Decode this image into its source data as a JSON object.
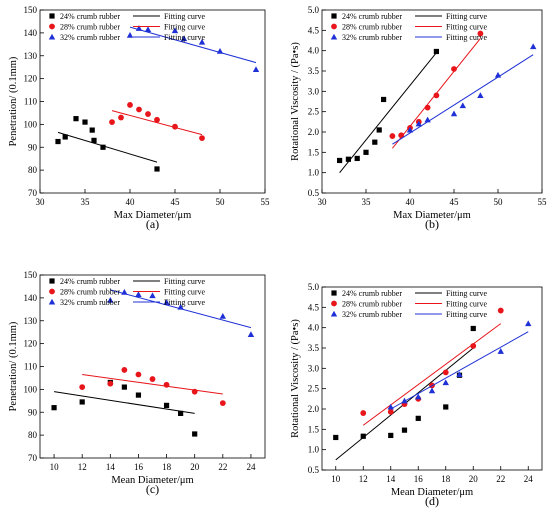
{
  "chart_data": [
    {
      "type": "scatter",
      "panel_label": "(a)",
      "xlabel": "Max Diameter/μm",
      "ylabel": "Penetration/ (0.1mm)",
      "xlim": [
        30,
        55
      ],
      "ylim": [
        70,
        150
      ],
      "xticks": [
        "30",
        "35",
        "40",
        "45",
        "50",
        "55"
      ],
      "yticks": [
        "70",
        "80",
        "90",
        "100",
        "110",
        "120",
        "130",
        "140",
        "150"
      ],
      "legend_position": "top-left",
      "series": [
        {
          "name": "24% crumb rubber",
          "color": "#000000",
          "marker": "square",
          "x": [
            32,
            32.8,
            34,
            35,
            35.8,
            36,
            37,
            43
          ],
          "y": [
            92.5,
            94.5,
            102.5,
            101,
            97.5,
            93,
            90,
            80.5
          ],
          "fit_name": "Fitting curve",
          "fit": [
            [
              32,
              96.5
            ],
            [
              43,
              83.5
            ]
          ]
        },
        {
          "name": "28% crumb rubber",
          "color": "#e8151b",
          "marker": "circle",
          "x": [
            38,
            39,
            40,
            41,
            42,
            43,
            45,
            48
          ],
          "y": [
            101,
            103,
            108.5,
            106.5,
            104.5,
            102,
            99,
            94
          ],
          "fit_name": "Fitting curve",
          "fit": [
            [
              38,
              106
            ],
            [
              48,
              95.5
            ]
          ]
        },
        {
          "name": "32% crumb rubber",
          "color": "#1f31d6",
          "marker": "triangle",
          "x": [
            40,
            41,
            42,
            45,
            46,
            48,
            50,
            54
          ],
          "y": [
            139,
            142,
            141.5,
            141,
            137.5,
            136,
            132,
            124
          ],
          "fit_name": "Fitting curve",
          "fit": [
            [
              40,
              142.5
            ],
            [
              54,
              127
            ]
          ]
        }
      ]
    },
    {
      "type": "scatter",
      "panel_label": "(b)",
      "xlabel": "Max Diameter/μm",
      "ylabel": "Rotational Viscosity / (Pa•s)",
      "xlim": [
        30,
        55
      ],
      "ylim": [
        0.5,
        5.0
      ],
      "xticks": [
        "30",
        "35",
        "40",
        "45",
        "50",
        "55"
      ],
      "yticks": [
        "0.5",
        "1.0",
        "1.5",
        "2.0",
        "2.5",
        "3.0",
        "3.5",
        "4.0",
        "4.5",
        "5.0"
      ],
      "legend_position": "top-left",
      "series": [
        {
          "name": "24% crumb rubber",
          "color": "#000000",
          "marker": "square",
          "x": [
            32,
            33,
            34,
            35,
            36,
            36.5,
            37,
            43
          ],
          "y": [
            1.3,
            1.33,
            1.35,
            1.5,
            1.75,
            2.05,
            2.8,
            3.98
          ],
          "fit_name": "Fitting curve",
          "fit": [
            [
              32,
              1.0
            ],
            [
              43,
              3.95
            ]
          ]
        },
        {
          "name": "28% crumb rubber",
          "color": "#e8151b",
          "marker": "circle",
          "x": [
            38,
            39,
            40,
            41,
            42,
            43,
            45,
            48
          ],
          "y": [
            1.9,
            1.92,
            2.1,
            2.25,
            2.6,
            2.9,
            3.55,
            4.42
          ],
          "fit_name": "Fitting curve",
          "fit": [
            [
              38,
              1.6
            ],
            [
              48,
              4.3
            ]
          ]
        },
        {
          "name": "32% crumb rubber",
          "color": "#1f31d6",
          "marker": "triangle",
          "x": [
            40,
            41,
            42,
            45,
            46,
            48,
            50,
            54
          ],
          "y": [
            2.05,
            2.2,
            2.3,
            2.45,
            2.65,
            2.9,
            3.4,
            4.1
          ],
          "fit_name": "Fitting curve",
          "fit": [
            [
              38,
              1.7
            ],
            [
              54,
              3.9
            ]
          ]
        }
      ]
    },
    {
      "type": "scatter",
      "panel_label": "(c)",
      "xlabel": "Mean Diameter/μm",
      "ylabel": "Penetration/ (0.1mm)",
      "xlim": [
        9,
        25
      ],
      "ylim": [
        70,
        150
      ],
      "xticks": [
        "10",
        "12",
        "14",
        "16",
        "18",
        "20",
        "22",
        "24"
      ],
      "yticks": [
        "70",
        "80",
        "90",
        "100",
        "110",
        "120",
        "130",
        "140",
        "150"
      ],
      "legend_position": "top-left",
      "series": [
        {
          "name": "24% crumb rubber",
          "color": "#000000",
          "marker": "square",
          "x": [
            10,
            12,
            14,
            15,
            16,
            18,
            19,
            20
          ],
          "y": [
            92,
            94.5,
            103,
            101,
            97.5,
            93,
            89.5,
            80.5
          ],
          "fit_name": "Fitting curve",
          "fit": [
            [
              10,
              99
            ],
            [
              20,
              89.5
            ]
          ]
        },
        {
          "name": "28% crumb rubber",
          "color": "#e8151b",
          "marker": "circle",
          "x": [
            12,
            14,
            15,
            16,
            17,
            18,
            20,
            22
          ],
          "y": [
            101,
            102.5,
            108.5,
            106.5,
            104.5,
            102,
            99,
            94
          ],
          "fit_name": "Fitting curve",
          "fit": [
            [
              12,
              106.5
            ],
            [
              22,
              98
            ]
          ]
        },
        {
          "name": "32% crumb rubber",
          "color": "#1f31d6",
          "marker": "triangle",
          "x": [
            14,
            15,
            16,
            17,
            18,
            19,
            22,
            24
          ],
          "y": [
            139,
            142.5,
            141.5,
            141,
            138,
            136,
            132,
            124
          ],
          "fit_name": "Fitting curve",
          "fit": [
            [
              14,
              143.5
            ],
            [
              24,
              127
            ]
          ]
        }
      ]
    },
    {
      "type": "scatter",
      "panel_label": "(d)",
      "xlabel": "Mean Diameter/μm",
      "ylabel": "Rotational Viscosity / (Pa•s)",
      "xlim": [
        9,
        25
      ],
      "ylim": [
        0.5,
        5.0
      ],
      "xticks": [
        "10",
        "12",
        "14",
        "16",
        "18",
        "20",
        "22",
        "24"
      ],
      "yticks": [
        "0.5",
        "1.0",
        "1.5",
        "2.0",
        "2.5",
        "3.0",
        "3.5",
        "4.0",
        "4.5",
        "5.0"
      ],
      "legend_position": "top-left",
      "series": [
        {
          "name": "24% crumb rubber",
          "color": "#000000",
          "marker": "square",
          "x": [
            10,
            12,
            14,
            15,
            16,
            18,
            19,
            20
          ],
          "y": [
            1.3,
            1.33,
            1.35,
            1.48,
            1.77,
            2.05,
            2.83,
            3.98
          ],
          "fit_name": "Fitting curve",
          "fit": [
            [
              10,
              0.75
            ],
            [
              20,
              3.5
            ]
          ]
        },
        {
          "name": "28% crumb rubber",
          "color": "#e8151b",
          "marker": "circle",
          "x": [
            12,
            14,
            15,
            16,
            17,
            18,
            20,
            22
          ],
          "y": [
            1.9,
            1.93,
            2.12,
            2.25,
            2.58,
            2.9,
            3.55,
            4.42
          ],
          "fit_name": "Fitting curve",
          "fit": [
            [
              12,
              1.6
            ],
            [
              22,
              4.1
            ]
          ]
        },
        {
          "name": "32% crumb rubber",
          "color": "#1f31d6",
          "marker": "triangle",
          "x": [
            14,
            15,
            16,
            17,
            18,
            19,
            22,
            24
          ],
          "y": [
            2.05,
            2.2,
            2.3,
            2.45,
            2.65,
            2.85,
            3.42,
            4.1
          ],
          "fit_name": "Fitting curve",
          "fit": [
            [
              14,
              2.0
            ],
            [
              24,
              3.9
            ]
          ]
        }
      ]
    }
  ]
}
